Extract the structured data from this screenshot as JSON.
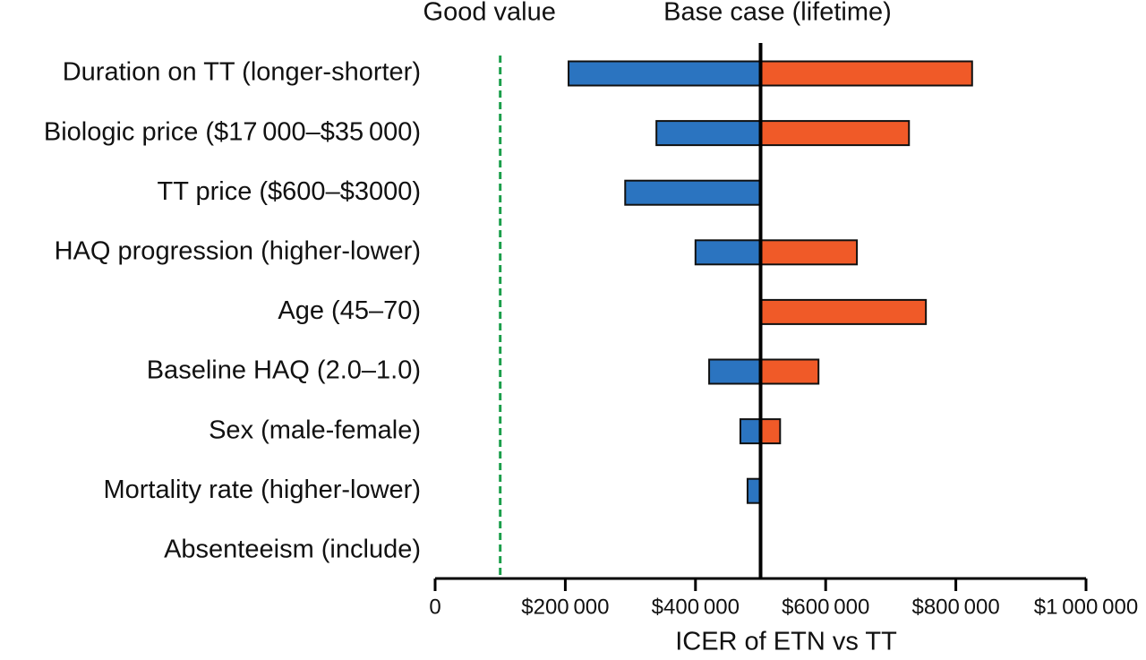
{
  "chart_data": {
    "type": "tornado",
    "xlabel": "ICER of ETN vs TT",
    "categories": [
      "Duration on TT (longer-shorter)",
      "Biologic price ($17 000–$35 000)",
      "TT price ($600–$3000)",
      "HAQ progression (higher-lower)",
      "Age (45–70)",
      "Baseline HAQ (2.0–1.0)",
      "Sex (male-female)",
      "Mortality rate (higher-lower)",
      "Absenteeism (include)"
    ],
    "base": 500000,
    "base_label": "Base case (lifetime)",
    "threshold": 100000,
    "threshold_label": "Good value",
    "threshold_color": "#1a9e4a",
    "series": [
      {
        "color": "#2b74c0",
        "values": [
          205000,
          340000,
          292000,
          400000,
          null,
          421000,
          469000,
          480000,
          null
        ]
      },
      {
        "color": "#f05a28",
        "values": [
          825000,
          728000,
          null,
          648000,
          754000,
          589000,
          530000,
          null,
          null
        ]
      }
    ],
    "xlim": [
      0,
      1000000
    ],
    "xticks": [
      0,
      {
        "value": 200000,
        "label": "$200 000"
      },
      {
        "value": 400000,
        "label": "$400 000"
      },
      {
        "value": 600000,
        "label": "$600 000"
      },
      {
        "value": 800000,
        "label": "$800 000"
      },
      {
        "value": 1000000,
        "label": "$1 000 000"
      }
    ]
  }
}
